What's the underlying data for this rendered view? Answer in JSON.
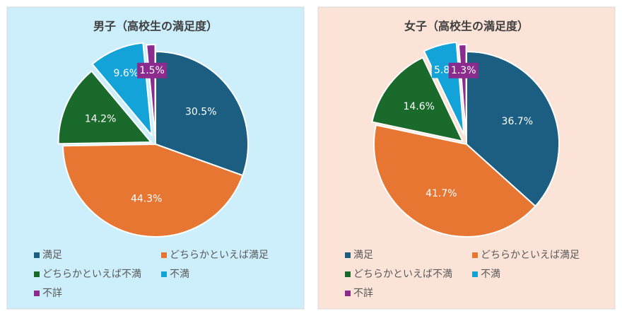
{
  "chart_data": [
    {
      "type": "pie",
      "title": "男子（高校生の満足度）",
      "categories": [
        "満足",
        "どちらかといえば満足",
        "どちらかといえば不満",
        "不満",
        "不詳"
      ],
      "values": [
        30.5,
        44.3,
        14.2,
        9.6,
        1.5
      ],
      "value_labels": [
        "30.5%",
        "44.3%",
        "14.2%",
        "9.6%",
        "1.5%"
      ],
      "colors": [
        "#1b5e82",
        "#e87633",
        "#1a6b2b",
        "#14a3d8",
        "#8a2b8d"
      ],
      "background": "#cdeefb"
    },
    {
      "type": "pie",
      "title": "女子（高校生の満足度）",
      "categories": [
        "満足",
        "どちらかといえば満足",
        "どちらかといえば不満",
        "不満",
        "不詳"
      ],
      "values": [
        36.7,
        41.7,
        14.6,
        5.8,
        1.3
      ],
      "value_labels": [
        "36.7%",
        "41.7%",
        "14.6%",
        "5.8%",
        "1.3%"
      ],
      "colors": [
        "#1b5e82",
        "#e87633",
        "#1a6b2b",
        "#14a3d8",
        "#8a2b8d"
      ],
      "background": "#fbe3d8"
    }
  ]
}
